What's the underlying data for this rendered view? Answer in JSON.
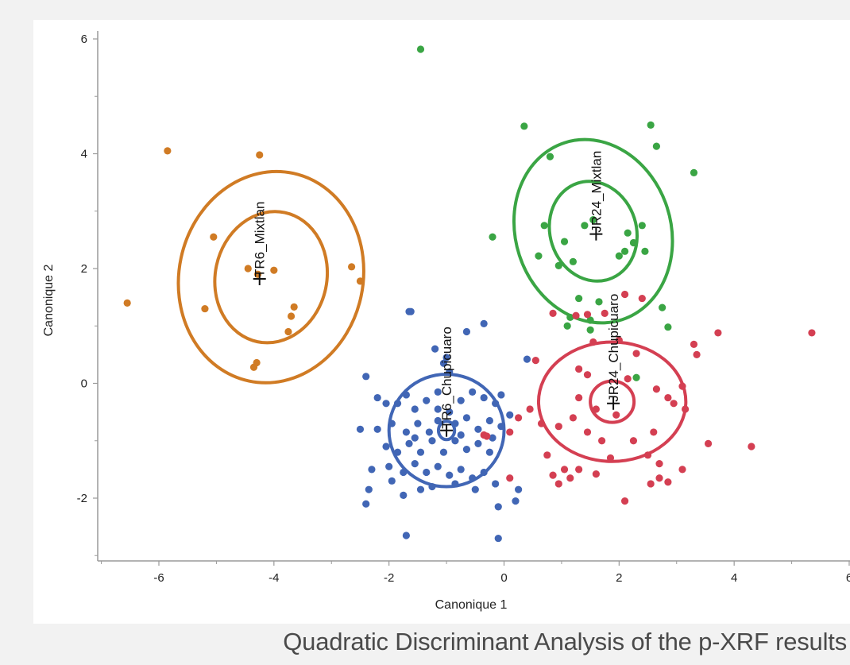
{
  "caption": "Quadratic Discriminant Analysis of the p-XRF results",
  "chart_data": {
    "type": "scatter",
    "xlabel": "Canonique 1",
    "ylabel": "Canonique 2",
    "xlim": [
      -7,
      6
    ],
    "ylim": [
      -3.2,
      6.3
    ],
    "xticks": [
      -6,
      -4,
      -2,
      0,
      2,
      4,
      6
    ],
    "yticks": [
      -2,
      0,
      2,
      4,
      6
    ],
    "grid": false,
    "colors": {
      "TR6_Mixtlan": "#d07b24",
      "TR6_Chupicuaro": "#4166b5",
      "JR24_Mixtlan": "#3aa544",
      "JR24_Chupicuaro": "#d43f52"
    },
    "groups": [
      {
        "label": "TR6_Mixtlan",
        "color": "#d07b24",
        "centroid": [
          -4.25,
          1.82
        ],
        "ellipses": [
          {
            "cx": -4.05,
            "cy": 1.85,
            "rx": 0.97,
            "ry": 1.15,
            "rot": 12
          },
          {
            "cx": -4.05,
            "cy": 1.85,
            "rx": 1.6,
            "ry": 1.85,
            "rot": 12
          }
        ],
        "points": [
          [
            -5.85,
            4.05
          ],
          [
            -4.25,
            3.98
          ],
          [
            -6.55,
            1.4
          ],
          [
            -5.05,
            2.55
          ],
          [
            -4.0,
            1.97
          ],
          [
            -5.2,
            1.3
          ],
          [
            -3.65,
            1.33
          ],
          [
            -3.7,
            1.17
          ],
          [
            -3.75,
            0.9
          ],
          [
            -4.35,
            0.28
          ],
          [
            -4.3,
            0.36
          ],
          [
            -2.65,
            2.03
          ],
          [
            -2.5,
            1.78
          ],
          [
            -4.28,
            1.9
          ],
          [
            -4.45,
            2.0
          ]
        ]
      },
      {
        "label": "TR6_Chupicuaro",
        "color": "#4166b5",
        "centroid": [
          -1.0,
          -0.82
        ],
        "ellipses": [
          {
            "cx": -1.0,
            "cy": -0.82,
            "rx": 0.14,
            "ry": 0.16,
            "rot": 0
          },
          {
            "cx": -1.0,
            "cy": -0.82,
            "rx": 1.0,
            "ry": 0.98,
            "rot": 0
          }
        ],
        "points": [
          [
            -1.65,
            1.25
          ],
          [
            -1.62,
            1.25
          ],
          [
            -0.35,
            1.04
          ],
          [
            -0.65,
            0.9
          ],
          [
            -1.2,
            0.6
          ],
          [
            -1.0,
            0.45
          ],
          [
            -1.05,
            0.35
          ],
          [
            -2.4,
            0.12
          ],
          [
            0.4,
            0.42
          ],
          [
            -2.2,
            -0.25
          ],
          [
            -2.05,
            -0.35
          ],
          [
            -1.85,
            -0.35
          ],
          [
            -1.7,
            -0.2
          ],
          [
            -1.55,
            -0.45
          ],
          [
            -1.35,
            -0.3
          ],
          [
            -1.15,
            -0.45
          ],
          [
            -0.95,
            -0.5
          ],
          [
            -0.75,
            -0.3
          ],
          [
            -0.55,
            -0.15
          ],
          [
            -0.35,
            -0.25
          ],
          [
            -0.15,
            -0.35
          ],
          [
            -0.05,
            -0.2
          ],
          [
            0.1,
            -0.55
          ],
          [
            -2.5,
            -0.8
          ],
          [
            -2.2,
            -0.8
          ],
          [
            -1.95,
            -0.7
          ],
          [
            -1.7,
            -0.85
          ],
          [
            -1.5,
            -0.7
          ],
          [
            -1.3,
            -0.85
          ],
          [
            -1.15,
            -0.65
          ],
          [
            -0.85,
            -0.7
          ],
          [
            -0.65,
            -0.6
          ],
          [
            -0.45,
            -0.8
          ],
          [
            -0.25,
            -0.65
          ],
          [
            -0.05,
            -0.75
          ],
          [
            -2.05,
            -1.1
          ],
          [
            -1.85,
            -1.2
          ],
          [
            -1.65,
            -1.05
          ],
          [
            -1.45,
            -1.2
          ],
          [
            -1.25,
            -1.0
          ],
          [
            -1.05,
            -1.2
          ],
          [
            -0.85,
            -1.0
          ],
          [
            -0.65,
            -1.15
          ],
          [
            -0.45,
            -1.05
          ],
          [
            -0.25,
            -1.2
          ],
          [
            -2.3,
            -1.5
          ],
          [
            -2.0,
            -1.45
          ],
          [
            -1.75,
            -1.55
          ],
          [
            -1.55,
            -1.4
          ],
          [
            -1.35,
            -1.55
          ],
          [
            -1.15,
            -1.45
          ],
          [
            -0.95,
            -1.6
          ],
          [
            -0.75,
            -1.5
          ],
          [
            -0.55,
            -1.65
          ],
          [
            -0.35,
            -1.55
          ],
          [
            -1.95,
            -1.7
          ],
          [
            -1.45,
            -1.85
          ],
          [
            -1.25,
            -1.8
          ],
          [
            -0.85,
            -1.75
          ],
          [
            -0.5,
            -1.85
          ],
          [
            0.25,
            -1.85
          ],
          [
            -2.35,
            -1.85
          ],
          [
            -1.75,
            -1.95
          ],
          [
            -0.15,
            -1.75
          ],
          [
            0.2,
            -2.05
          ],
          [
            -2.4,
            -2.1
          ],
          [
            -0.1,
            -2.15
          ],
          [
            -1.7,
            -2.65
          ],
          [
            -0.1,
            -2.7
          ],
          [
            -1.55,
            -0.95
          ],
          [
            -0.75,
            -0.9
          ],
          [
            -1.15,
            -0.15
          ],
          [
            -0.95,
            0.2
          ],
          [
            -0.2,
            -0.95
          ]
        ]
      },
      {
        "label": "JR24_Mixtlan",
        "color": "#3aa544",
        "centroid": [
          1.6,
          2.6
        ],
        "ellipses": [
          {
            "cx": 1.55,
            "cy": 2.65,
            "rx": 0.75,
            "ry": 0.88,
            "rot": -18
          },
          {
            "cx": 1.55,
            "cy": 2.65,
            "rx": 1.35,
            "ry": 1.62,
            "rot": -18
          }
        ],
        "points": [
          [
            -1.45,
            5.82
          ],
          [
            0.35,
            4.48
          ],
          [
            2.55,
            4.5
          ],
          [
            2.65,
            4.13
          ],
          [
            3.3,
            3.67
          ],
          [
            0.8,
            3.95
          ],
          [
            1.55,
            2.85
          ],
          [
            1.4,
            2.75
          ],
          [
            0.7,
            2.75
          ],
          [
            -0.2,
            2.55
          ],
          [
            1.05,
            2.47
          ],
          [
            2.15,
            2.62
          ],
          [
            2.4,
            2.75
          ],
          [
            2.25,
            2.45
          ],
          [
            2.1,
            2.3
          ],
          [
            2.45,
            2.3
          ],
          [
            0.6,
            2.22
          ],
          [
            1.2,
            2.12
          ],
          [
            0.95,
            2.05
          ],
          [
            2.0,
            2.22
          ],
          [
            1.3,
            1.48
          ],
          [
            1.65,
            1.42
          ],
          [
            1.15,
            1.15
          ],
          [
            1.5,
            1.1
          ],
          [
            2.75,
            1.32
          ],
          [
            1.5,
            0.93
          ],
          [
            1.1,
            1.0
          ],
          [
            2.85,
            0.98
          ],
          [
            2.3,
            0.1
          ]
        ]
      },
      {
        "label": "JR24_Chupicuaro",
        "color": "#d43f52",
        "centroid": [
          1.9,
          -0.35
        ],
        "ellipses": [
          {
            "cx": 1.88,
            "cy": -0.32,
            "rx": 0.38,
            "ry": 0.36,
            "rot": 0
          },
          {
            "cx": 1.88,
            "cy": -0.32,
            "rx": 1.28,
            "ry": 1.04,
            "rot": 0
          }
        ],
        "points": [
          [
            5.35,
            0.88
          ],
          [
            3.72,
            0.88
          ],
          [
            3.3,
            0.68
          ],
          [
            3.35,
            0.5
          ],
          [
            0.85,
            1.22
          ],
          [
            1.25,
            1.18
          ],
          [
            1.45,
            1.2
          ],
          [
            1.75,
            1.22
          ],
          [
            2.1,
            1.55
          ],
          [
            2.4,
            1.48
          ],
          [
            2.0,
            0.75
          ],
          [
            1.55,
            0.72
          ],
          [
            2.3,
            0.52
          ],
          [
            0.55,
            0.4
          ],
          [
            1.3,
            0.25
          ],
          [
            1.45,
            0.15
          ],
          [
            2.15,
            0.08
          ],
          [
            3.1,
            -0.05
          ],
          [
            2.65,
            -0.1
          ],
          [
            2.85,
            -0.25
          ],
          [
            2.95,
            -0.35
          ],
          [
            3.15,
            -0.45
          ],
          [
            1.3,
            -0.25
          ],
          [
            1.6,
            -0.45
          ],
          [
            1.95,
            -0.55
          ],
          [
            1.2,
            -0.6
          ],
          [
            0.95,
            -0.75
          ],
          [
            0.65,
            -0.7
          ],
          [
            0.25,
            -0.6
          ],
          [
            0.1,
            -0.85
          ],
          [
            -0.35,
            -0.9
          ],
          [
            1.45,
            -0.85
          ],
          [
            1.7,
            -1.0
          ],
          [
            2.25,
            -1.0
          ],
          [
            3.55,
            -1.05
          ],
          [
            4.3,
            -1.1
          ],
          [
            0.75,
            -1.25
          ],
          [
            1.05,
            -1.5
          ],
          [
            1.3,
            -1.5
          ],
          [
            1.85,
            -1.3
          ],
          [
            2.5,
            -1.25
          ],
          [
            2.7,
            -1.4
          ],
          [
            3.1,
            -1.5
          ],
          [
            0.85,
            -1.6
          ],
          [
            1.15,
            -1.65
          ],
          [
            1.6,
            -1.58
          ],
          [
            2.7,
            -1.65
          ],
          [
            2.85,
            -1.72
          ],
          [
            0.95,
            -1.75
          ],
          [
            2.55,
            -1.75
          ],
          [
            2.1,
            -2.05
          ],
          [
            0.1,
            -1.65
          ],
          [
            -0.3,
            -0.92
          ],
          [
            0.45,
            -0.45
          ],
          [
            2.6,
            -0.85
          ]
        ]
      }
    ]
  }
}
